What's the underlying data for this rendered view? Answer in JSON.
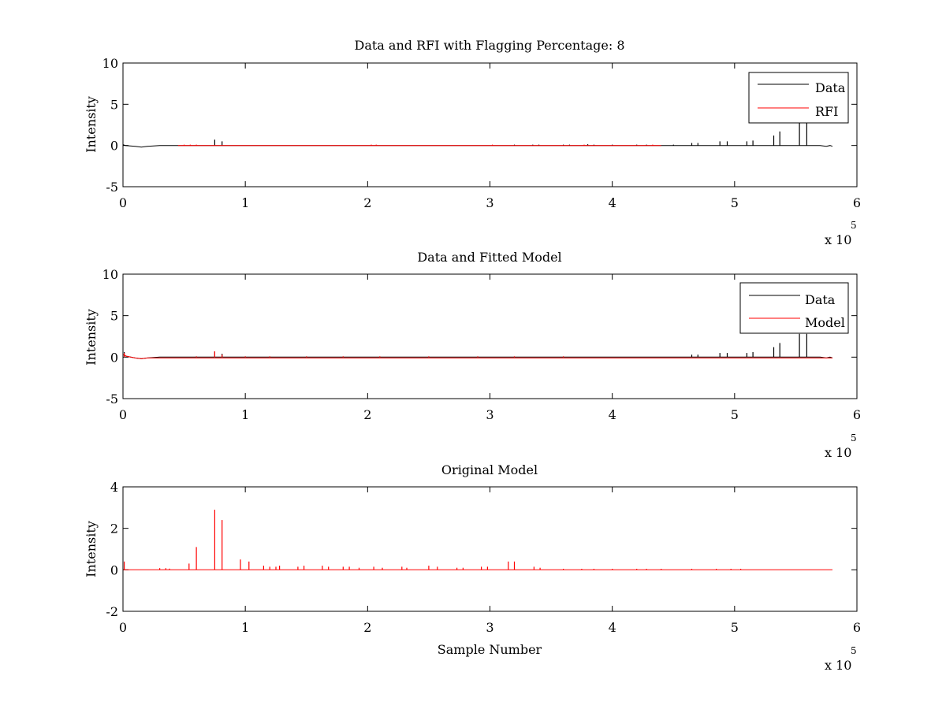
{
  "chart_data": [
    {
      "type": "line",
      "title": "Data and RFI with Flagging Percentage: 8",
      "xlabel": "",
      "ylabel": "Intensity",
      "xlim": [
        0,
        600000
      ],
      "ylim": [
        -5,
        10
      ],
      "xticks": [
        0,
        1,
        2,
        3,
        4,
        5,
        6
      ],
      "yticks": [
        -5,
        0,
        5,
        10
      ],
      "x_exponent": "x 10",
      "x_exponent_power": "5",
      "grid": false,
      "legend_position": "top-right",
      "series": [
        {
          "name": "Data",
          "color": "#000000",
          "baseline": [
            [
              0,
              0.1
            ],
            [
              2000,
              0.0
            ],
            [
              10000,
              -0.1
            ],
            [
              15000,
              -0.2
            ],
            [
              20000,
              -0.1
            ],
            [
              30000,
              0.0
            ],
            [
              570000,
              0.0
            ],
            [
              575000,
              -0.1
            ],
            [
              578000,
              0.0
            ],
            [
              580000,
              -0.1
            ]
          ],
          "spikes": [
            [
              75000,
              0.7
            ],
            [
              81000,
              0.5
            ],
            [
              320000,
              0.1
            ],
            [
              335000,
              0.1
            ],
            [
              340000,
              0.1
            ],
            [
              360000,
              0.1
            ],
            [
              365000,
              0.1
            ],
            [
              380000,
              0.15
            ],
            [
              385000,
              0.1
            ],
            [
              400000,
              0.1
            ],
            [
              420000,
              0.1
            ],
            [
              428000,
              0.1
            ],
            [
              450000,
              0.1
            ],
            [
              465000,
              0.3
            ],
            [
              470000,
              0.3
            ],
            [
              488000,
              0.5
            ],
            [
              494000,
              0.5
            ],
            [
              510000,
              0.5
            ],
            [
              515000,
              0.6
            ],
            [
              532000,
              1.2
            ],
            [
              537000,
              1.7
            ],
            [
              553000,
              2.8
            ],
            [
              559000,
              2.8
            ]
          ]
        },
        {
          "name": "RFI",
          "color": "#ff0000",
          "baseline": [
            [
              45000,
              0.0
            ],
            [
              60000,
              0.0
            ],
            [
              200000,
              0.0
            ],
            [
              210000,
              0.0
            ],
            [
              370000,
              0.0
            ],
            [
              380000,
              0.0
            ],
            [
              430000,
              0.0
            ],
            [
              440000,
              0.0
            ]
          ],
          "spikes": [
            [
              50000,
              0.1
            ],
            [
              55000,
              0.1
            ],
            [
              60000,
              0.1
            ],
            [
              203000,
              0.1
            ],
            [
              207000,
              0.1
            ],
            [
              302000,
              0.1
            ],
            [
              377000,
              0.1
            ],
            [
              433000,
              0.1
            ]
          ]
        }
      ]
    },
    {
      "type": "line",
      "title": "Data and Fitted Model",
      "xlabel": "",
      "ylabel": "Intensity",
      "xlim": [
        0,
        600000
      ],
      "ylim": [
        -5,
        10
      ],
      "xticks": [
        0,
        1,
        2,
        3,
        4,
        5,
        6
      ],
      "yticks": [
        -5,
        0,
        5,
        10
      ],
      "x_exponent": "x 10",
      "x_exponent_power": "5",
      "grid": false,
      "legend_position": "top-right",
      "series": [
        {
          "name": "Data",
          "color": "#000000",
          "baseline": [
            [
              0,
              0.3
            ],
            [
              3000,
              0.1
            ],
            [
              10000,
              -0.1
            ],
            [
              15000,
              -0.2
            ],
            [
              20000,
              -0.1
            ],
            [
              30000,
              0.0
            ],
            [
              570000,
              0.0
            ],
            [
              575000,
              -0.1
            ],
            [
              578000,
              0.0
            ],
            [
              580000,
              -0.1
            ]
          ],
          "spikes": [
            [
              1000,
              0.6
            ],
            [
              75000,
              0.7
            ],
            [
              81000,
              0.4
            ],
            [
              465000,
              0.3
            ],
            [
              470000,
              0.3
            ],
            [
              488000,
              0.5
            ],
            [
              494000,
              0.5
            ],
            [
              510000,
              0.5
            ],
            [
              515000,
              0.6
            ],
            [
              532000,
              1.2
            ],
            [
              537000,
              1.7
            ],
            [
              553000,
              2.8
            ],
            [
              559000,
              2.8
            ]
          ]
        },
        {
          "name": "Model",
          "color": "#ff0000",
          "baseline": [
            [
              0,
              0.3
            ],
            [
              3000,
              0.1
            ],
            [
              10000,
              -0.1
            ],
            [
              15000,
              -0.2
            ],
            [
              20000,
              -0.1
            ],
            [
              30000,
              -0.1
            ],
            [
              580000,
              -0.1
            ]
          ],
          "spikes": [
            [
              1000,
              0.5
            ],
            [
              60000,
              0.1
            ],
            [
              75000,
              0.7
            ],
            [
              81000,
              0.3
            ],
            [
              100000,
              0.1
            ],
            [
              120000,
              0.1
            ],
            [
              150000,
              0.1
            ],
            [
              180000,
              0.1
            ],
            [
              210000,
              0.1
            ],
            [
              250000,
              0.1
            ],
            [
              290000,
              0.1
            ],
            [
              320000,
              0.1
            ],
            [
              360000,
              0.1
            ]
          ]
        }
      ]
    },
    {
      "type": "line",
      "title": "Original Model",
      "xlabel": "Sample Number",
      "ylabel": "Intensity",
      "xlim": [
        0,
        600000
      ],
      "ylim": [
        -2,
        4
      ],
      "xticks": [
        0,
        1,
        2,
        3,
        4,
        5,
        6
      ],
      "yticks": [
        -2,
        0,
        2,
        4
      ],
      "x_exponent": "x 10",
      "x_exponent_power": "5",
      "grid": false,
      "series": [
        {
          "color": "#ff0000",
          "baseline": [
            [
              0,
              0.0
            ],
            [
              580000,
              0.0
            ]
          ],
          "spikes": [
            [
              1000,
              0.4
            ],
            [
              30000,
              0.08
            ],
            [
              35000,
              0.08
            ],
            [
              38000,
              0.06
            ],
            [
              54000,
              0.3
            ],
            [
              60000,
              1.1
            ],
            [
              75000,
              2.9
            ],
            [
              81000,
              2.4
            ],
            [
              96000,
              0.5
            ],
            [
              103000,
              0.4
            ],
            [
              115000,
              0.2
            ],
            [
              120000,
              0.15
            ],
            [
              125000,
              0.15
            ],
            [
              128000,
              0.2
            ],
            [
              143000,
              0.15
            ],
            [
              148000,
              0.2
            ],
            [
              163000,
              0.2
            ],
            [
              168000,
              0.15
            ],
            [
              180000,
              0.15
            ],
            [
              185000,
              0.15
            ],
            [
              193000,
              0.1
            ],
            [
              205000,
              0.15
            ],
            [
              212000,
              0.1
            ],
            [
              228000,
              0.15
            ],
            [
              232000,
              0.1
            ],
            [
              250000,
              0.2
            ],
            [
              257000,
              0.15
            ],
            [
              273000,
              0.1
            ],
            [
              278000,
              0.1
            ],
            [
              293000,
              0.15
            ],
            [
              298000,
              0.15
            ],
            [
              315000,
              0.4
            ],
            [
              320000,
              0.4
            ],
            [
              336000,
              0.15
            ],
            [
              341000,
              0.1
            ],
            [
              360000,
              0.05
            ],
            [
              375000,
              0.05
            ],
            [
              385000,
              0.05
            ],
            [
              400000,
              0.05
            ],
            [
              420000,
              0.05
            ],
            [
              428000,
              0.05
            ],
            [
              440000,
              0.05
            ],
            [
              465000,
              0.05
            ],
            [
              485000,
              0.05
            ],
            [
              497000,
              0.05
            ],
            [
              505000,
              0.05
            ]
          ]
        }
      ]
    }
  ]
}
